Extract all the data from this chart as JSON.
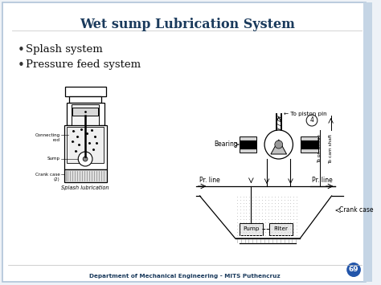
{
  "title": "Wet sump Lubrication System",
  "bullet1": "Splash system",
  "bullet2": "Pressure feed system",
  "footer": "Department of Mechanical Engineering - MITS Puthencruz",
  "page_num": "69",
  "bg_color": "#eef2f7",
  "title_color": "#1a3a5c",
  "footer_color": "#1a3a5c",
  "page_circle_color": "#2255aa",
  "slide_bg": "#ffffff",
  "border_color": "#b0c4d8",
  "right_accent": "#c5d5e5"
}
